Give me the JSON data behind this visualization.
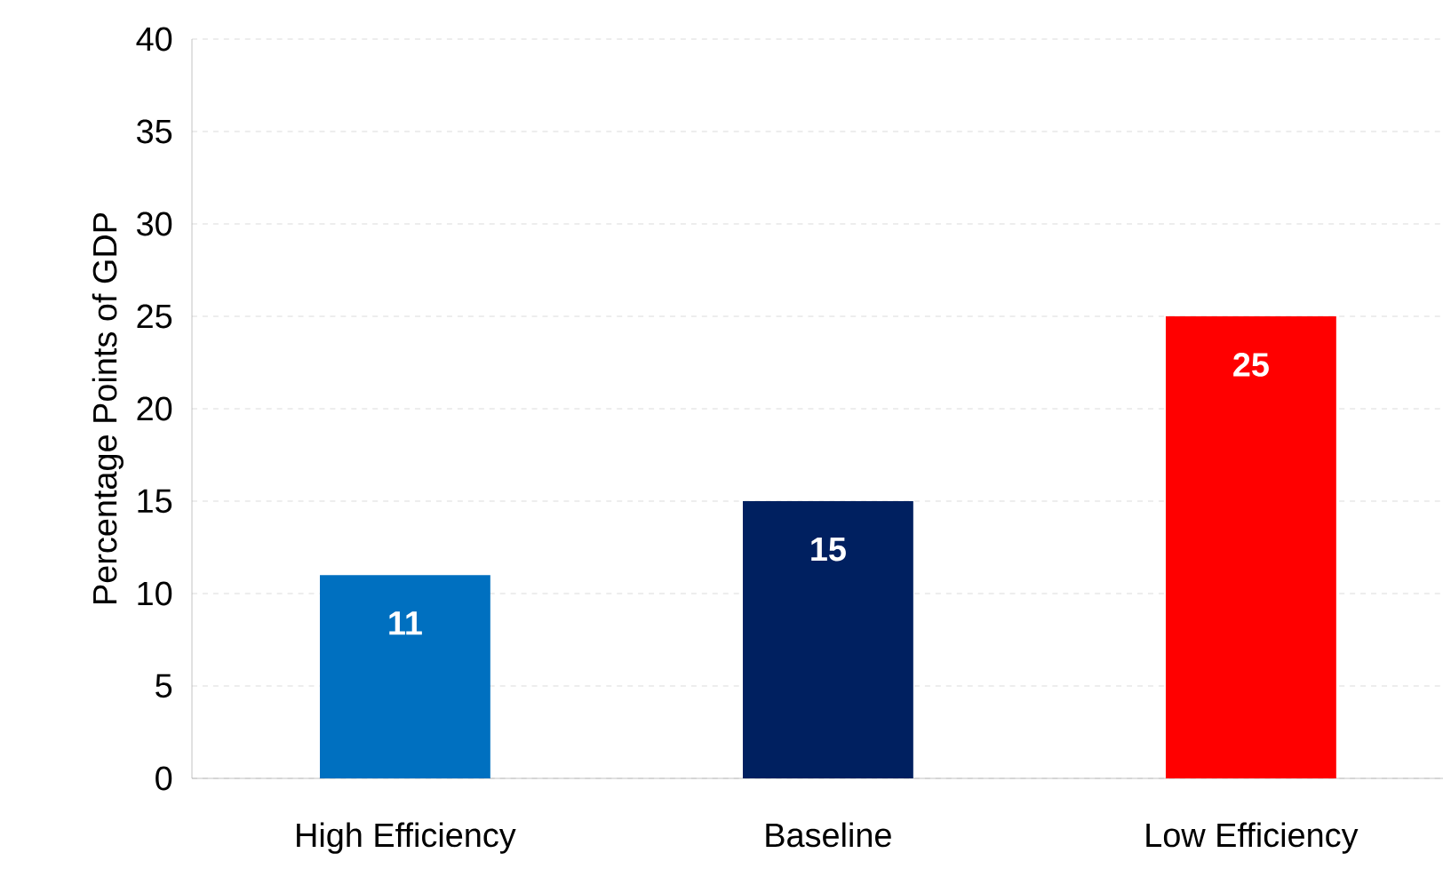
{
  "chart_data": {
    "type": "bar",
    "ylabel": "Percentage Points of GDP",
    "categories": [
      "High Efficiency",
      "Baseline",
      "Low Efficiency"
    ],
    "values": [
      11,
      15,
      25
    ],
    "colors": [
      "#0070c0",
      "#002060",
      "#ff0000"
    ],
    "ylim": [
      0,
      40
    ],
    "yticks": [
      0,
      5,
      10,
      15,
      20,
      25,
      30,
      35,
      40
    ],
    "grid": "y",
    "data_labels": true
  }
}
